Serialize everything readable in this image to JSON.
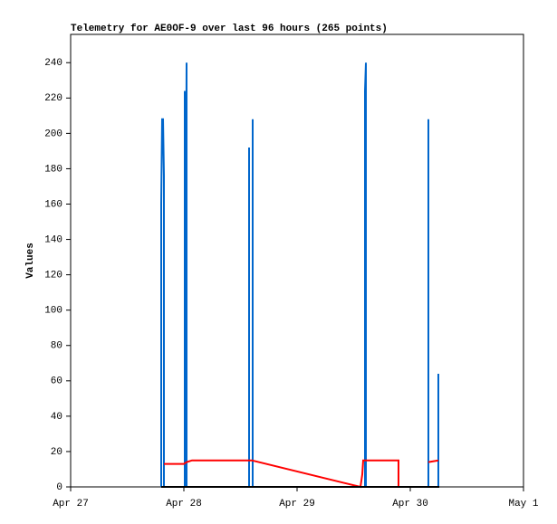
{
  "chart_data": {
    "type": "line",
    "title": "Telemetry for AE0OF-9 over last 96 hours (265 points)",
    "y_label": "Values",
    "xlim": [
      0,
      4
    ],
    "xticks": [
      {
        "value": 0,
        "label": "Apr 27"
      },
      {
        "value": 1,
        "label": "Apr 28"
      },
      {
        "value": 2,
        "label": "Apr 29"
      },
      {
        "value": 3,
        "label": "Apr 30"
      },
      {
        "value": 4,
        "label": "May 1"
      }
    ],
    "ylim": [
      0,
      256
    ],
    "yticks": [
      0,
      20,
      40,
      60,
      80,
      100,
      120,
      140,
      160,
      180,
      200,
      220,
      240
    ],
    "series": [
      {
        "color": "#0066cc",
        "x": [
          0.8,
          0.8,
          0.808,
          0.816,
          0.824,
          0.824,
          1.008,
          1.008,
          1.016,
          1.024,
          1.024,
          1.576,
          1.576,
          1.576,
          1.608,
          1.608,
          1.608,
          2.6,
          2.6,
          2.608,
          2.608,
          3.16,
          3.16,
          3.16,
          3.248,
          3.248,
          3.248
        ],
        "values": [
          0,
          160,
          208,
          208,
          176,
          0,
          0,
          224,
          112,
          240,
          0,
          0,
          192,
          0,
          0,
          208,
          0,
          0,
          224,
          240,
          0,
          0,
          208,
          0,
          0,
          64,
          0
        ]
      },
      {
        "color": "#ff0000",
        "x": [
          0.824,
          1.0,
          1.024,
          1.072,
          1.6,
          2.56,
          2.576,
          2.584,
          2.896,
          2.896,
          3.0,
          3.16,
          3.248
        ],
        "values": [
          13,
          13,
          14,
          15,
          15,
          0,
          7,
          15,
          15,
          0,
          null,
          14,
          15
        ]
      },
      {
        "color": "#000000",
        "x": [
          0.8,
          3.256
        ],
        "values": [
          0,
          0
        ]
      }
    ]
  }
}
